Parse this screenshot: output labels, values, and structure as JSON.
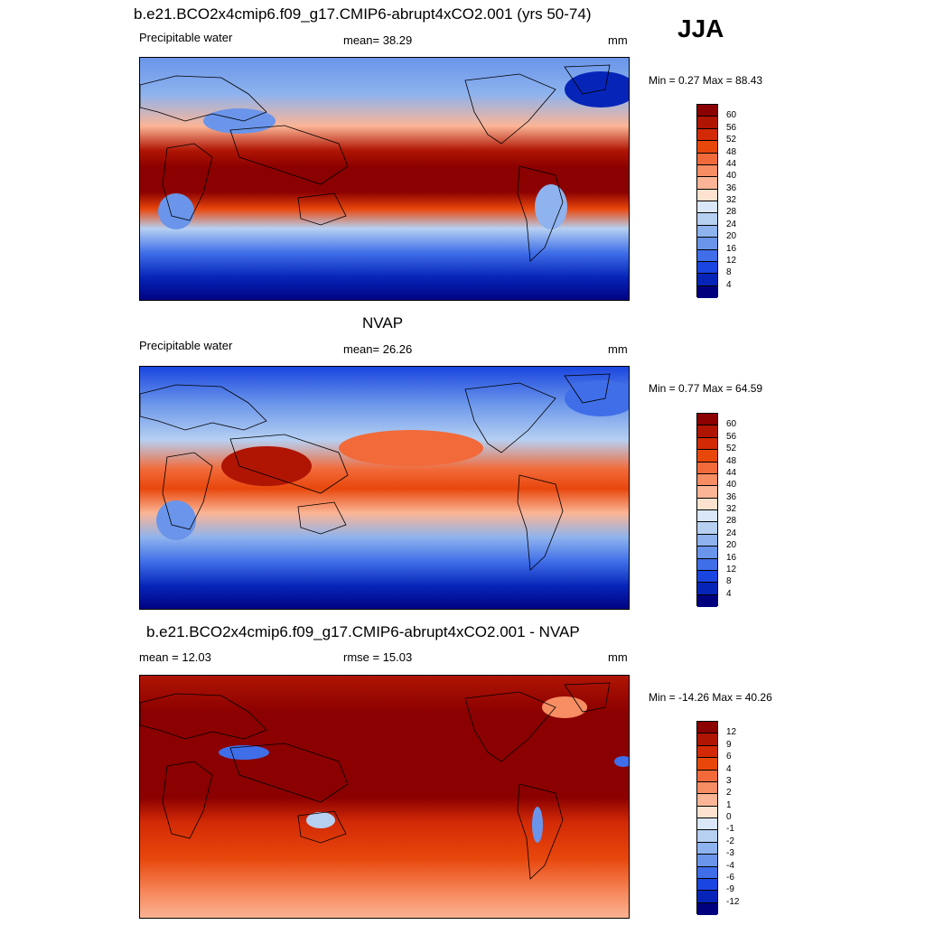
{
  "season": "JJA",
  "panels": [
    {
      "title": "b.e21.BCO2x4cmip6.f09_g17.CMIP6-abrupt4xCO2.001 (yrs 50-74)",
      "left_label": "Precipitable water",
      "center_label": "mean=  38.29",
      "units": "mm",
      "minmax": "Min =   0.27 Max =  88.43",
      "colorbar_labels": [
        "60",
        "56",
        "52",
        "48",
        "44",
        "40",
        "36",
        "32",
        "28",
        "24",
        "20",
        "16",
        "12",
        "8",
        "4"
      ],
      "colors": [
        "#8b0000",
        "#b01503",
        "#d22a06",
        "#e8470c",
        "#f26a3a",
        "#f78d62",
        "#fbb596",
        "#fde3cf",
        "#d9e7f8",
        "#b6d0f2",
        "#8eb3ee",
        "#6a95ea",
        "#3f6ee8",
        "#1a45e0",
        "#0625b8",
        "#00007f"
      ]
    },
    {
      "title": "NVAP",
      "left_label": "Precipitable water",
      "center_label": "mean=  26.26",
      "units": "mm",
      "minmax": "Min =   0.77 Max =  64.59",
      "colorbar_labels": [
        "60",
        "56",
        "52",
        "48",
        "44",
        "40",
        "36",
        "32",
        "28",
        "24",
        "20",
        "16",
        "12",
        "8",
        "4"
      ],
      "colors": [
        "#8b0000",
        "#b01503",
        "#d22a06",
        "#e8470c",
        "#f26a3a",
        "#f78d62",
        "#fbb596",
        "#fde3cf",
        "#d9e7f8",
        "#b6d0f2",
        "#8eb3ee",
        "#6a95ea",
        "#3f6ee8",
        "#1a45e0",
        "#0625b8",
        "#00007f"
      ]
    },
    {
      "title": "b.e21.BCO2x4cmip6.f09_g17.CMIP6-abrupt4xCO2.001 - NVAP",
      "left_label": "mean =  12.03",
      "center_label": "rmse =  15.03",
      "units": "mm",
      "minmax": "Min = -14.26 Max =  40.26",
      "colorbar_labels": [
        "12",
        "9",
        "6",
        "4",
        "3",
        "2",
        "1",
        "0",
        "-1",
        "-2",
        "-3",
        "-4",
        "-6",
        "-9",
        "-12"
      ],
      "colors": [
        "#8b0000",
        "#b01503",
        "#d22a06",
        "#e8470c",
        "#f26a3a",
        "#f78d62",
        "#fbb596",
        "#fde3cf",
        "#d9e7f8",
        "#b6d0f2",
        "#8eb3ee",
        "#6a95ea",
        "#3f6ee8",
        "#1a45e0",
        "#0625b8",
        "#00007f"
      ]
    }
  ]
}
